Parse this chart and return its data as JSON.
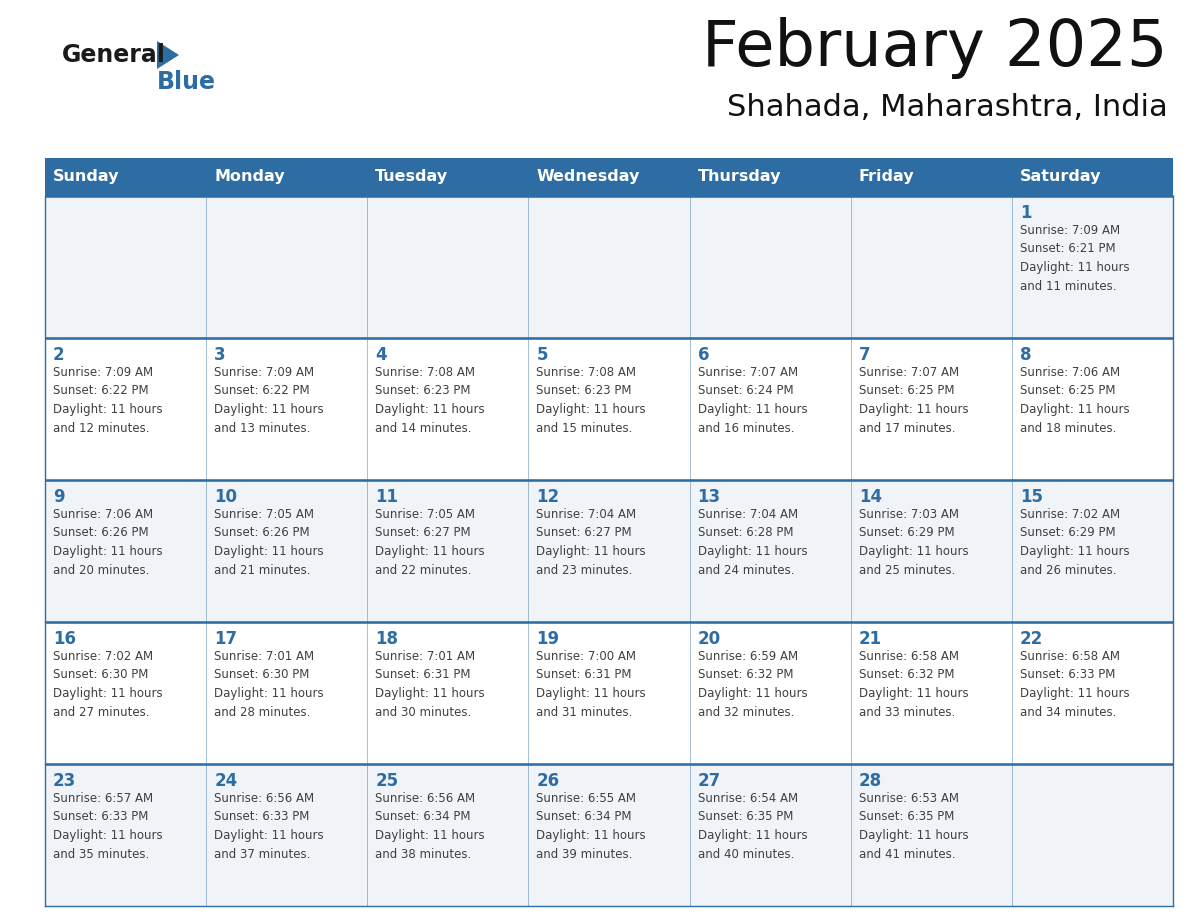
{
  "title": "February 2025",
  "subtitle": "Shahada, Maharashtra, India",
  "header_bg": "#2E6DA4",
  "header_text_color": "#FFFFFF",
  "day_names": [
    "Sunday",
    "Monday",
    "Tuesday",
    "Wednesday",
    "Thursday",
    "Friday",
    "Saturday"
  ],
  "grid_line_color": "#2E6DA4",
  "cell_bg_light": "#F0F4F8",
  "cell_bg_white": "#FFFFFF",
  "date_color": "#2E6DA4",
  "text_color": "#404040",
  "title_color": "#111111",
  "logo_general_color": "#1a1a1a",
  "logo_blue_color": "#2E6DA4",
  "weeks": [
    [
      {
        "day": null,
        "info": null
      },
      {
        "day": null,
        "info": null
      },
      {
        "day": null,
        "info": null
      },
      {
        "day": null,
        "info": null
      },
      {
        "day": null,
        "info": null
      },
      {
        "day": null,
        "info": null
      },
      {
        "day": 1,
        "info": "Sunrise: 7:09 AM\nSunset: 6:21 PM\nDaylight: 11 hours\nand 11 minutes."
      }
    ],
    [
      {
        "day": 2,
        "info": "Sunrise: 7:09 AM\nSunset: 6:22 PM\nDaylight: 11 hours\nand 12 minutes."
      },
      {
        "day": 3,
        "info": "Sunrise: 7:09 AM\nSunset: 6:22 PM\nDaylight: 11 hours\nand 13 minutes."
      },
      {
        "day": 4,
        "info": "Sunrise: 7:08 AM\nSunset: 6:23 PM\nDaylight: 11 hours\nand 14 minutes."
      },
      {
        "day": 5,
        "info": "Sunrise: 7:08 AM\nSunset: 6:23 PM\nDaylight: 11 hours\nand 15 minutes."
      },
      {
        "day": 6,
        "info": "Sunrise: 7:07 AM\nSunset: 6:24 PM\nDaylight: 11 hours\nand 16 minutes."
      },
      {
        "day": 7,
        "info": "Sunrise: 7:07 AM\nSunset: 6:25 PM\nDaylight: 11 hours\nand 17 minutes."
      },
      {
        "day": 8,
        "info": "Sunrise: 7:06 AM\nSunset: 6:25 PM\nDaylight: 11 hours\nand 18 minutes."
      }
    ],
    [
      {
        "day": 9,
        "info": "Sunrise: 7:06 AM\nSunset: 6:26 PM\nDaylight: 11 hours\nand 20 minutes."
      },
      {
        "day": 10,
        "info": "Sunrise: 7:05 AM\nSunset: 6:26 PM\nDaylight: 11 hours\nand 21 minutes."
      },
      {
        "day": 11,
        "info": "Sunrise: 7:05 AM\nSunset: 6:27 PM\nDaylight: 11 hours\nand 22 minutes."
      },
      {
        "day": 12,
        "info": "Sunrise: 7:04 AM\nSunset: 6:27 PM\nDaylight: 11 hours\nand 23 minutes."
      },
      {
        "day": 13,
        "info": "Sunrise: 7:04 AM\nSunset: 6:28 PM\nDaylight: 11 hours\nand 24 minutes."
      },
      {
        "day": 14,
        "info": "Sunrise: 7:03 AM\nSunset: 6:29 PM\nDaylight: 11 hours\nand 25 minutes."
      },
      {
        "day": 15,
        "info": "Sunrise: 7:02 AM\nSunset: 6:29 PM\nDaylight: 11 hours\nand 26 minutes."
      }
    ],
    [
      {
        "day": 16,
        "info": "Sunrise: 7:02 AM\nSunset: 6:30 PM\nDaylight: 11 hours\nand 27 minutes."
      },
      {
        "day": 17,
        "info": "Sunrise: 7:01 AM\nSunset: 6:30 PM\nDaylight: 11 hours\nand 28 minutes."
      },
      {
        "day": 18,
        "info": "Sunrise: 7:01 AM\nSunset: 6:31 PM\nDaylight: 11 hours\nand 30 minutes."
      },
      {
        "day": 19,
        "info": "Sunrise: 7:00 AM\nSunset: 6:31 PM\nDaylight: 11 hours\nand 31 minutes."
      },
      {
        "day": 20,
        "info": "Sunrise: 6:59 AM\nSunset: 6:32 PM\nDaylight: 11 hours\nand 32 minutes."
      },
      {
        "day": 21,
        "info": "Sunrise: 6:58 AM\nSunset: 6:32 PM\nDaylight: 11 hours\nand 33 minutes."
      },
      {
        "day": 22,
        "info": "Sunrise: 6:58 AM\nSunset: 6:33 PM\nDaylight: 11 hours\nand 34 minutes."
      }
    ],
    [
      {
        "day": 23,
        "info": "Sunrise: 6:57 AM\nSunset: 6:33 PM\nDaylight: 11 hours\nand 35 minutes."
      },
      {
        "day": 24,
        "info": "Sunrise: 6:56 AM\nSunset: 6:33 PM\nDaylight: 11 hours\nand 37 minutes."
      },
      {
        "day": 25,
        "info": "Sunrise: 6:56 AM\nSunset: 6:34 PM\nDaylight: 11 hours\nand 38 minutes."
      },
      {
        "day": 26,
        "info": "Sunrise: 6:55 AM\nSunset: 6:34 PM\nDaylight: 11 hours\nand 39 minutes."
      },
      {
        "day": 27,
        "info": "Sunrise: 6:54 AM\nSunset: 6:35 PM\nDaylight: 11 hours\nand 40 minutes."
      },
      {
        "day": 28,
        "info": "Sunrise: 6:53 AM\nSunset: 6:35 PM\nDaylight: 11 hours\nand 41 minutes."
      },
      {
        "day": null,
        "info": null
      }
    ]
  ]
}
